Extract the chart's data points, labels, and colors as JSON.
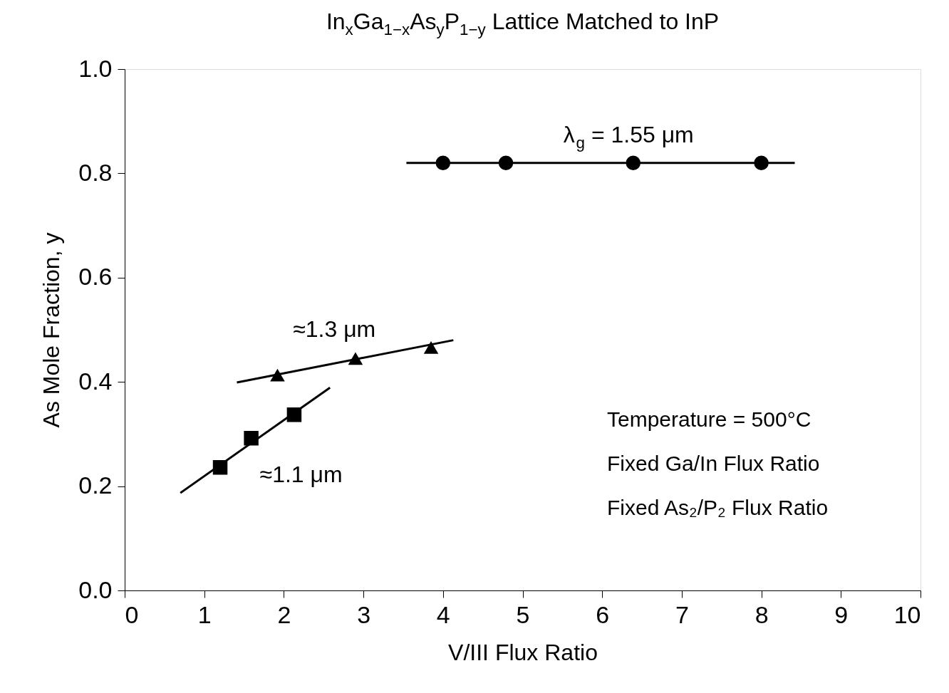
{
  "chart_data": {
    "type": "scatter",
    "title": "In$_{x}$Ga$_{1−x}$As$_{y}$P$_{1−y}$ Lattice Matched to InP",
    "xlabel": "V/III Flux Ratio",
    "ylabel": "As Mole Fraction, y",
    "xlim": [
      0,
      10
    ],
    "xticks": [
      0,
      1,
      2,
      3,
      4,
      5,
      6,
      7,
      8,
      9,
      10
    ],
    "ylim": [
      0,
      1
    ],
    "yticks": [
      {
        "value": 0,
        "label": "0.0"
      },
      {
        "value": 0.2,
        "label": "0.2"
      },
      {
        "value": 0.4,
        "label": "0.4"
      },
      {
        "value": 0.6,
        "label": "0.6"
      },
      {
        "value": 0.8,
        "label": "0.8"
      },
      {
        "value": 1,
        "label": "1.0"
      }
    ],
    "grid": false,
    "series": [
      {
        "name": "λ$_{g}$ = 1.55 μm",
        "marker": "circle",
        "color": "#000000",
        "x": [
          4.0,
          4.79,
          6.39,
          8.0
        ],
        "values": [
          0.82,
          0.82,
          0.82,
          0.82
        ]
      },
      {
        "name": "≈1.3 μm",
        "marker": "triangle",
        "color": "#000000",
        "x": [
          1.92,
          2.9,
          3.85
        ],
        "values": [
          0.413,
          0.445,
          0.466
        ]
      },
      {
        "name": "≈1.1 μm",
        "marker": "square",
        "color": "#000000",
        "x": [
          1.2,
          1.59,
          2.13
        ],
        "values": [
          0.236,
          0.292,
          0.337
        ]
      },
      {
        "type": "line",
        "marker": "none",
        "line_style": "solid",
        "color": "#000000",
        "x": [
          3.54,
          8.42
        ],
        "values": [
          0.82,
          0.82
        ]
      },
      {
        "type": "line",
        "marker": "none",
        "line_style": "solid",
        "color": "#000000",
        "x": [
          1.41,
          4.13
        ],
        "values": [
          0.399,
          0.48
        ]
      },
      {
        "type": "line",
        "marker": "none",
        "line_style": "solid",
        "color": "#000000",
        "x": [
          0.7,
          2.58
        ],
        "values": [
          0.187,
          0.389
        ]
      }
    ],
    "annotations": [
      "Temperature = 500°C",
      "Fixed Ga/In Flux Ratio",
      "Fixed As₂/P₂ Flux Ratio"
    ]
  }
}
